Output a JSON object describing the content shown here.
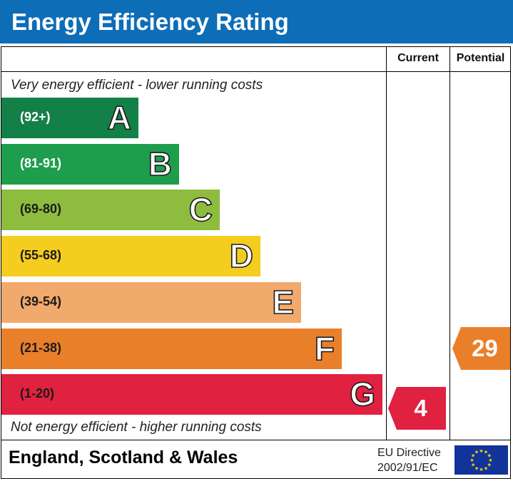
{
  "header": {
    "title": "Energy Efficiency Rating"
  },
  "columns": {
    "current": "Current",
    "potential": "Potential"
  },
  "notes": {
    "top": "Very energy efficient - lower running costs",
    "bottom": "Not energy efficient - higher running costs"
  },
  "bands": [
    {
      "letter": "A",
      "range": "(92+)",
      "color": "#138047",
      "text_color": "#ffffff"
    },
    {
      "letter": "B",
      "range": "(81-91)",
      "color": "#1e9e4d",
      "text_color": "#ffffff"
    },
    {
      "letter": "C",
      "range": "(69-80)",
      "color": "#8dbc3f",
      "text_color": "#1a1a1a"
    },
    {
      "letter": "D",
      "range": "(55-68)",
      "color": "#f4cd1e",
      "text_color": "#1a1a1a"
    },
    {
      "letter": "E",
      "range": "(39-54)",
      "color": "#f2a96c",
      "text_color": "#1a1a1a"
    },
    {
      "letter": "F",
      "range": "(21-38)",
      "color": "#ea7f2a",
      "text_color": "#1a1a1a"
    },
    {
      "letter": "G",
      "range": "(1-20)",
      "color": "#e0213f",
      "text_color": "#1a1a1a"
    }
  ],
  "ratings": {
    "current": {
      "value": "4",
      "band": "G",
      "color": "#e0213f"
    },
    "potential": {
      "value": "29",
      "band": "F",
      "color": "#ea7f2a"
    }
  },
  "footer": {
    "region": "England, Scotland & Wales",
    "directive_line1": "EU Directive",
    "directive_line2": "2002/91/EC",
    "flag_icon": "eu-flag-icon"
  }
}
